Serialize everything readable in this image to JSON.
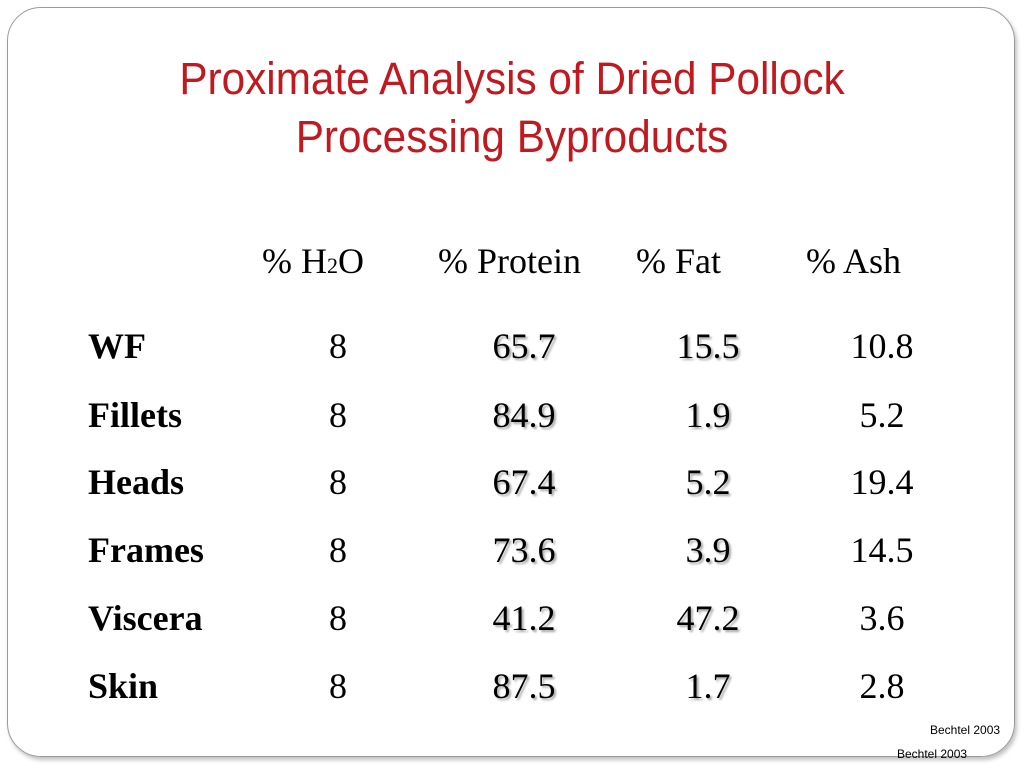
{
  "title": {
    "line1": "Proximate Analysis of Dried Pollock",
    "line2": "Processing Byproducts"
  },
  "table": {
    "headers": {
      "h2o_prefix": "% H",
      "h2o_sub": "2",
      "h2o_suffix": "O",
      "protein": "% Protein",
      "fat": "% Fat",
      "ash": "% Ash"
    },
    "rows": [
      {
        "label": "WF",
        "h2o": "8",
        "protein": "65.7",
        "fat": "15.5",
        "ash": "10.8"
      },
      {
        "label": "Fillets",
        "h2o": "8",
        "protein": "84.9",
        "fat": "1.9",
        "ash": "5.2"
      },
      {
        "label": "Heads",
        "h2o": "8",
        "protein": "67.4",
        "fat": "5.2",
        "ash": "19.4"
      },
      {
        "label": "Frames",
        "h2o": "8",
        "protein": "73.6",
        "fat": "3.9",
        "ash": "14.5"
      },
      {
        "label": "Viscera",
        "h2o": "8",
        "protein": "41.2",
        "fat": "47.2",
        "ash": "3.6"
      },
      {
        "label": "Skin",
        "h2o": "8",
        "protein": "87.5",
        "fat": "1.7",
        "ash": "2.8"
      }
    ]
  },
  "credits": {
    "inner": "Bechtel 2003",
    "outer": "Bechtel 2003"
  },
  "colors": {
    "title": "#c0191f",
    "text": "#000000",
    "background": "#ffffff"
  }
}
